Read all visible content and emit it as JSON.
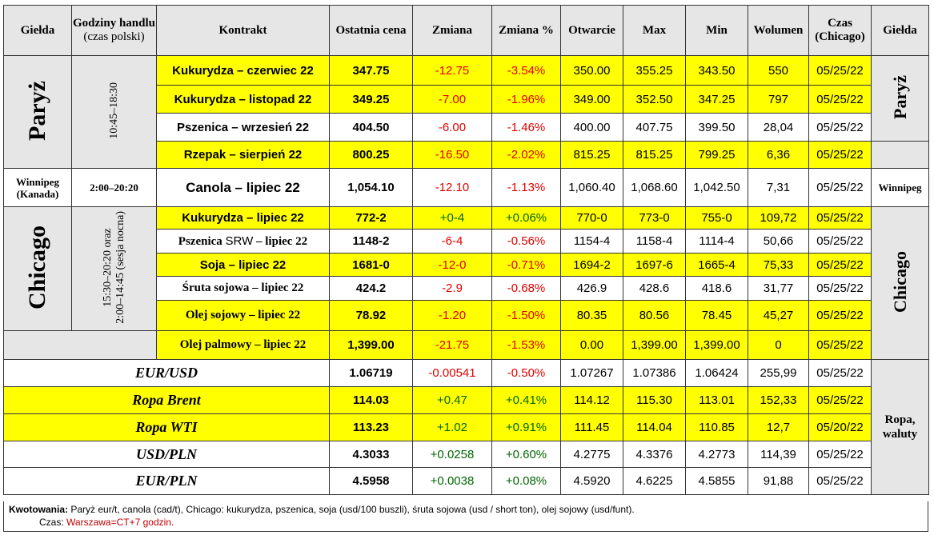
{
  "header": {
    "exchange": "Giełda",
    "hours": "Godziny handlu",
    "hours_sub": "(czas polski)",
    "contract": "Kontrakt",
    "last": "Ostatnia cena",
    "change": "Zmiana",
    "change_pct": "Zmiana %",
    "open": "Otwarcie",
    "max": "Max",
    "min": "Min",
    "volume": "Wolumen",
    "time": "Czas",
    "time_sub": "(Chicago)",
    "exchange_right": "Giełda"
  },
  "groups": {
    "paris": {
      "name": "Paryż",
      "hours": "10:45–18:30"
    },
    "winnipeg": {
      "name": "Winnipeg",
      "sub": "(Kanada)",
      "hours": "2:00–20:20",
      "right": "Winnipeg"
    },
    "chicago": {
      "name": "Chicago",
      "hours_line1": "15:30–20:20 oraz",
      "hours_line2": "2:00–14:45 (sesja nocna)"
    },
    "fx": {
      "right": "Ropa, waluty"
    }
  },
  "rows": [
    {
      "contract": "Kukurydza – czerwiec 22",
      "last": "347.75",
      "change": "-12.75",
      "change_pct": "-3.54%",
      "open": "350.00",
      "max": "355.25",
      "min": "343.50",
      "volume": "550",
      "time": "05/25/22"
    },
    {
      "contract": "Kukurydza – listopad 22",
      "last": "349.25",
      "change": "-7.00",
      "change_pct": "-1.96%",
      "open": "349.00",
      "max": "352.50",
      "min": "347.25",
      "volume": "797",
      "time": "05/25/22"
    },
    {
      "contract": "Pszenica – wrzesień 22",
      "last": "404.50",
      "change": "-6.00",
      "change_pct": "-1.46%",
      "open": "400.00",
      "max": "407.75",
      "min": "399.50",
      "volume": "28,04",
      "time": "05/25/22"
    },
    {
      "contract": "Rzepak – sierpień 22",
      "last": "800.25",
      "change": "-16.50",
      "change_pct": "-2.02%",
      "open": "815.25",
      "max": "815.25",
      "min": "799.25",
      "volume": "6,36",
      "time": "05/25/22"
    },
    {
      "contract": "Canola – lipiec 22",
      "last": "1,054.10",
      "change": "-12.10",
      "change_pct": "-1.13%",
      "open": "1,060.40",
      "max": "1,068.60",
      "min": "1,042.50",
      "volume": "7,31",
      "time": "05/25/22"
    },
    {
      "contract": "Kukurydza – lipiec 22",
      "last": "772-2",
      "change": "+0-4",
      "change_pct": "+0.06%",
      "open": "770-0",
      "max": "773-0",
      "min": "755-0",
      "volume": "109,72",
      "time": "05/25/22"
    },
    {
      "contract_a": "Pszenica",
      "contract_b": "SRW",
      "contract_c": "– lipiec 22",
      "last": "1148-2",
      "change": "-6-4",
      "change_pct": "-0.56%",
      "open": "1154-4",
      "max": "1158-4",
      "min": "1114-4",
      "volume": "50,66",
      "time": "05/25/22"
    },
    {
      "contract": "Soja – lipiec 22",
      "last": "1681-0",
      "change": "-12-0",
      "change_pct": "-0.71%",
      "open": "1694-2",
      "max": "1697-6",
      "min": "1665-4",
      "volume": "75,33",
      "time": "05/25/22"
    },
    {
      "contract": "Śruta sojowa – lipiec 22",
      "last": "424.2",
      "change": "-2.9",
      "change_pct": "-0.68%",
      "open": "426.9",
      "max": "428.6",
      "min": "418.6",
      "volume": "31,77",
      "time": "05/25/22"
    },
    {
      "contract": "Olej sojowy – lipiec 22",
      "last": "78.92",
      "change": "-1.20",
      "change_pct": "-1.50%",
      "open": "80.35",
      "max": "80.56",
      "min": "78.45",
      "volume": "45,27",
      "time": "05/25/22"
    },
    {
      "contract": "Olej palmowy – lipiec 22",
      "last": "1,399.00",
      "change": "-21.75",
      "change_pct": "-1.53%",
      "open": "0.00",
      "max": "1,399.00",
      "min": "1,399.00",
      "volume": "0",
      "time": "05/25/22"
    },
    {
      "contract": "EUR/USD",
      "last": "1.06719",
      "change": "-0.00541",
      "change_pct": "-0.50%",
      "open": "1.07267",
      "max": "1.07386",
      "min": "1.06424",
      "volume": "255,99",
      "time": "05/25/22"
    },
    {
      "contract": "Ropa Brent",
      "last": "114.03",
      "change": "+0.47",
      "change_pct": "+0.41%",
      "open": "114.12",
      "max": "115.30",
      "min": "113.01",
      "volume": "152,33",
      "time": "05/25/22"
    },
    {
      "contract": "Ropa WTI",
      "last": "113.23",
      "change": "+1.02",
      "change_pct": "+0.91%",
      "open": "111.45",
      "max": "114.04",
      "min": "110.85",
      "volume": "12,7",
      "time": "05/20/22"
    },
    {
      "contract": "USD/PLN",
      "last": "4.3033",
      "change": "+0.0258",
      "change_pct": "+0.60%",
      "open": "4.2775",
      "max": "4.3376",
      "min": "4.2773",
      "volume": "114,39",
      "time": "05/25/22"
    },
    {
      "contract": "EUR/PLN",
      "last": "4.5958",
      "change": "+0.0038",
      "change_pct": "+0.08%",
      "open": "4.5920",
      "max": "4.6225",
      "min": "4.5855",
      "volume": "91,88",
      "time": "05/25/22"
    }
  ],
  "footer": {
    "quote_label": "Kwotowania:",
    "quote_text": "Paryż eur/t, canola (cad/t), Chicago: kukurydza, pszenica, soja (usd/100 buszli), śruta sojowa (usd / short ton), olej sojowy (usd/funt).",
    "time_label": "Czas:",
    "time_text": "Warszawa=CT+7 godzin."
  },
  "colors": {
    "highlight": "#ffff00",
    "header_bg": "#e6e6e6",
    "negative": "#e00000",
    "positive": "#006600"
  }
}
